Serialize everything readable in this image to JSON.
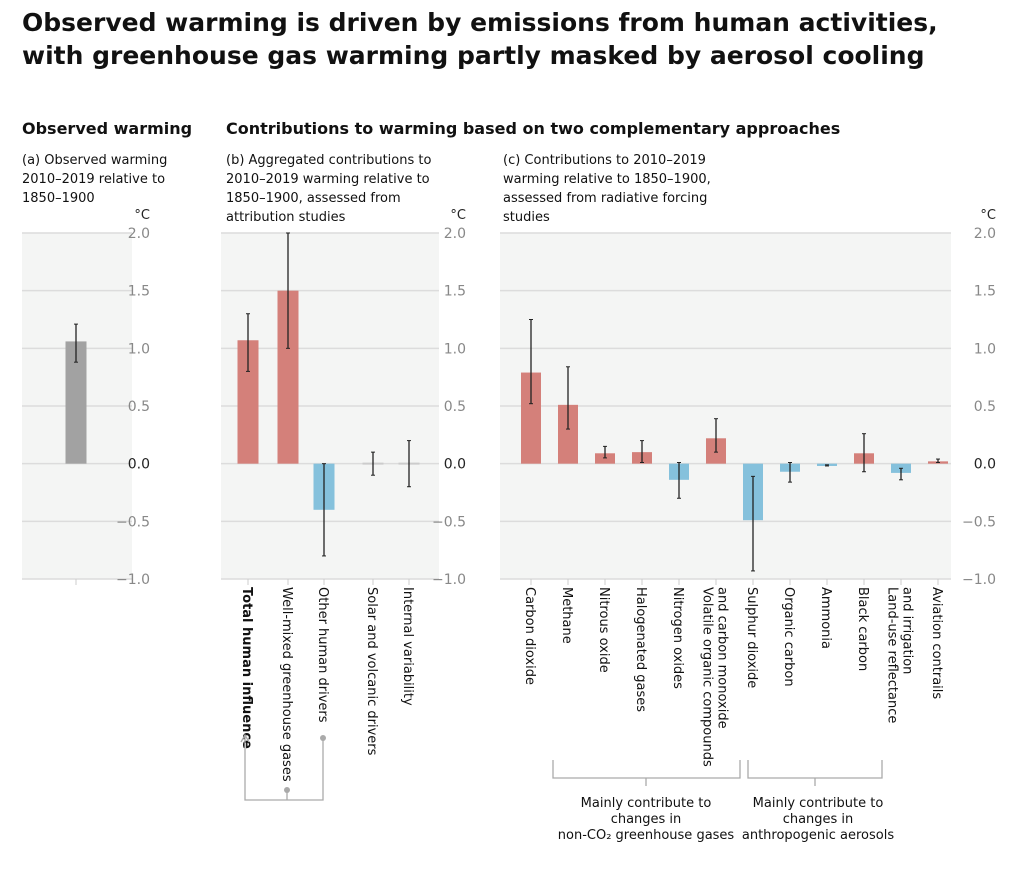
{
  "title": "Observed warming is driven by emissions from human activities, with greenhouse gas warming partly masked by aerosol cooling",
  "section_observed": "Observed warming",
  "section_contributions": "Contributions to warming based on two complementary approaches",
  "colors": {
    "warming": "#d4807a",
    "cooling": "#85c1dc",
    "observed": "#a2a2a2",
    "panel_bg": "#f4f5f4"
  },
  "chart_data": [
    {
      "type": "bar",
      "subtitle": "(a) Observed warming 2010–2019 relative to 1850–1900",
      "ylabel": "°C",
      "ylim": [
        -1.0,
        2.0
      ],
      "yticks": [
        "2.0",
        "1.5",
        "1.0",
        "0.5",
        "0.0",
        "−0.5",
        "−1.0"
      ],
      "grid": true,
      "categories": [
        ""
      ],
      "values": [
        1.06
      ],
      "error_low": [
        0.88
      ],
      "error_high": [
        1.21
      ]
    },
    {
      "type": "bar",
      "subtitle": "(b) Aggregated contributions to 2010–2019 warming relative to 1850–1900, assessed from attribution studies",
      "ylabel": "°C",
      "ylim": [
        -1.0,
        2.0
      ],
      "yticks": [
        "2.0",
        "1.5",
        "1.0",
        "0.5",
        "0.0",
        "−0.5",
        "−1.0"
      ],
      "grid": true,
      "categories": [
        "Total human influence",
        "Well-mixed greenhouse gases",
        "Other human drivers",
        "Solar and volcanic drivers",
        "Internal variability"
      ],
      "values": [
        1.07,
        1.5,
        -0.4,
        0.0,
        0.0
      ],
      "error_low": [
        0.8,
        1.0,
        -0.8,
        -0.1,
        -0.2
      ],
      "error_high": [
        1.3,
        2.0,
        0.0,
        0.1,
        0.2
      ],
      "annotation": "Total human influence = Well-mixed greenhouse gases + Other human drivers"
    },
    {
      "type": "bar",
      "subtitle": "(c) Contributions to 2010–2019 warming relative to 1850–1900, assessed from radiative forcing studies",
      "ylabel": "°C",
      "ylim": [
        -1.0,
        2.0
      ],
      "yticks": [
        "2.0",
        "1.5",
        "1.0",
        "0.5",
        "0.0",
        "−0.5",
        "−1.0"
      ],
      "grid": true,
      "categories": [
        "Carbon dioxide",
        "Methane",
        "Nitrous oxide",
        "Halogenated gases",
        "Nitrogen oxides",
        "Volatile organic compounds and carbon monoxide",
        "Sulphur dioxide",
        "Organic carbon",
        "Ammonia",
        "Black carbon",
        "Land-use reflectance and irrigation",
        "Aviation contrails"
      ],
      "values": [
        0.79,
        0.51,
        0.09,
        0.1,
        -0.14,
        0.22,
        -0.49,
        -0.07,
        -0.02,
        0.09,
        -0.08,
        0.02
      ],
      "error_low": [
        0.52,
        0.3,
        0.05,
        0.01,
        -0.3,
        0.1,
        -0.93,
        -0.16,
        -0.02,
        -0.07,
        -0.14,
        0.01
      ],
      "error_high": [
        1.25,
        0.84,
        0.15,
        0.2,
        0.01,
        0.39,
        -0.11,
        0.01,
        -0.01,
        0.26,
        -0.04,
        0.04
      ],
      "groups": [
        {
          "label": "Mainly contribute to changes in non-CO₂ greenhouse gases"
        },
        {
          "label": "Mainly contribute to changes in anthropogenic aerosols"
        }
      ]
    }
  ]
}
